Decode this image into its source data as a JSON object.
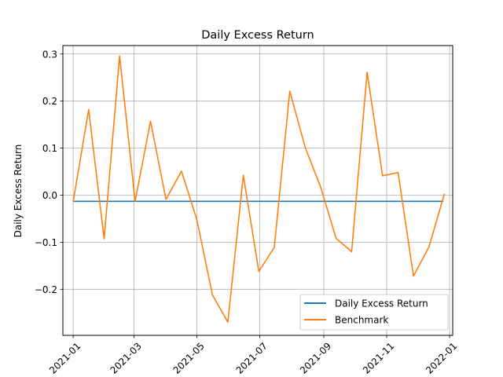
{
  "chart_data": {
    "type": "line",
    "title": "Daily Excess Return",
    "xlabel": "",
    "ylabel": "Daily Excess Return",
    "x_type": "date",
    "xlim": [
      "2020-12-22",
      "2022-01-04"
    ],
    "ylim": [
      -0.298,
      0.318
    ],
    "grid": true,
    "legend_position": "lower right",
    "x_ticks": [
      "2021-01-01",
      "2021-03-01",
      "2021-05-01",
      "2021-07-01",
      "2021-09-01",
      "2021-11-01",
      "2022-01-01"
    ],
    "x_tick_labels": [
      "2021-01",
      "2021-03",
      "2021-05",
      "2021-07",
      "2021-09",
      "2021-11",
      "2022-01"
    ],
    "y_ticks": [
      -0.2,
      -0.1,
      0.0,
      0.1,
      0.2,
      0.3
    ],
    "y_tick_labels": [
      "−0.2",
      "−0.1",
      "0.0",
      "0.1",
      "0.2",
      "0.3"
    ],
    "series": [
      {
        "name": "Daily Excess Return",
        "color": "#1f77b4",
        "x": [
          "2021-01-01",
          "2021-12-26"
        ],
        "y": [
          -0.013,
          -0.013
        ]
      },
      {
        "name": "Benchmark",
        "color": "#ff7f0e",
        "x": [
          "2021-01-01",
          "2021-01-16",
          "2021-01-31",
          "2021-02-15",
          "2021-03-02",
          "2021-03-17",
          "2021-04-01",
          "2021-04-16",
          "2021-05-01",
          "2021-05-16",
          "2021-05-31",
          "2021-06-15",
          "2021-06-30",
          "2021-07-15",
          "2021-07-30",
          "2021-08-14",
          "2021-08-29",
          "2021-09-13",
          "2021-09-28",
          "2021-10-13",
          "2021-10-28",
          "2021-11-12",
          "2021-11-27",
          "2021-12-12",
          "2021-12-27"
        ],
        "y": [
          -0.014,
          0.182,
          -0.093,
          0.296,
          -0.013,
          0.157,
          -0.009,
          0.051,
          -0.053,
          -0.212,
          -0.27,
          0.042,
          -0.162,
          -0.111,
          0.221,
          0.101,
          0.017,
          -0.092,
          -0.12,
          0.261,
          0.041,
          0.048,
          -0.172,
          -0.11,
          0.003
        ]
      }
    ]
  }
}
